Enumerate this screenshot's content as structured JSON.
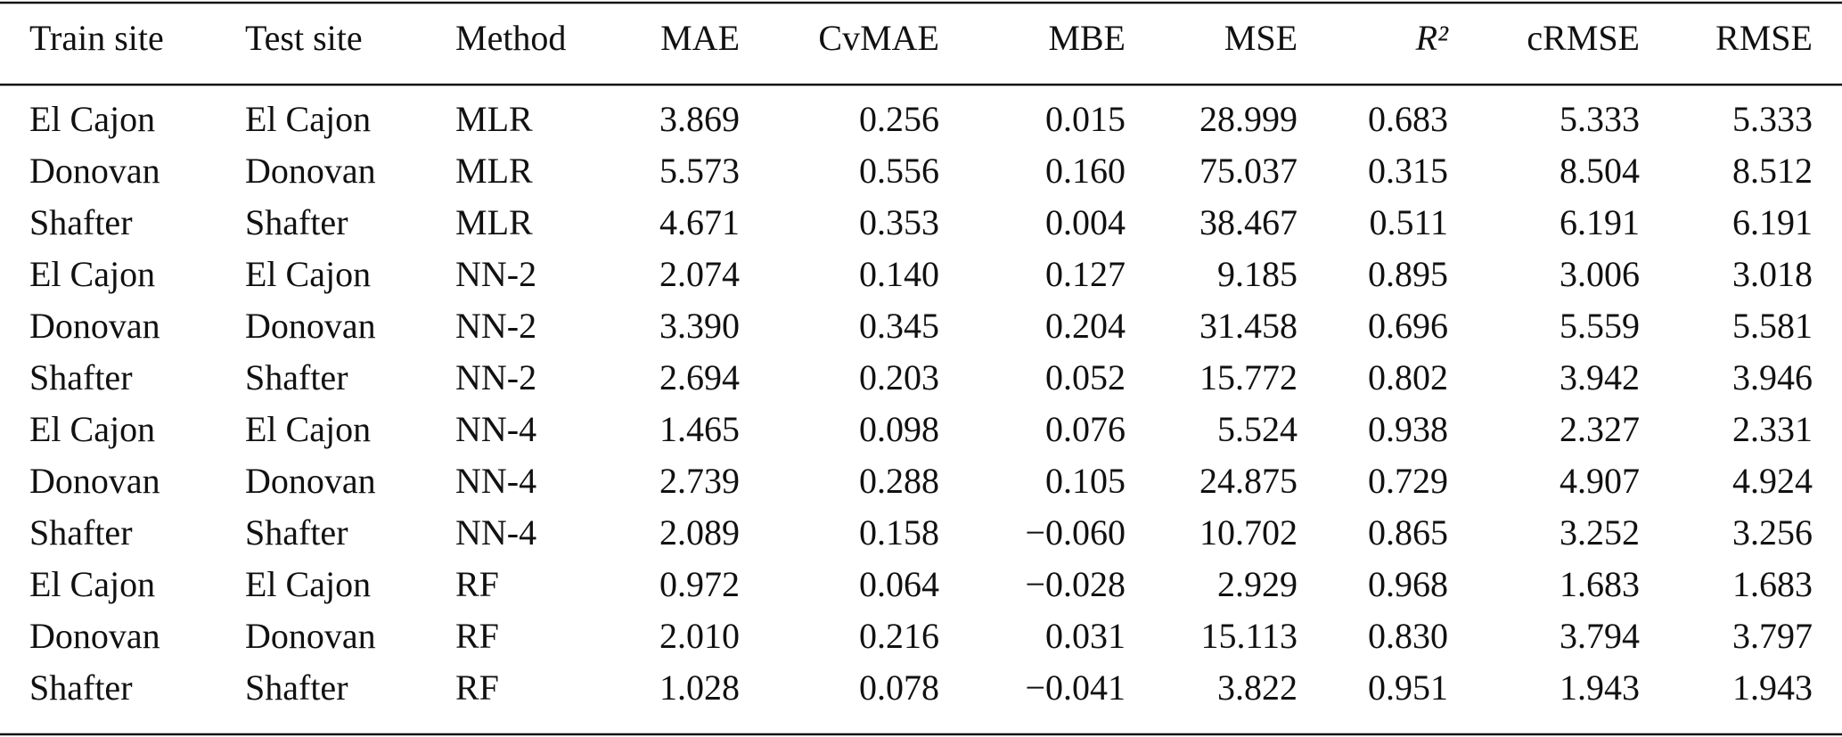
{
  "table": {
    "header": [
      "Train site",
      "Test site",
      "Method",
      "MAE",
      "CvMAE",
      "MBE",
      "MSE",
      "R²",
      "cRMSE",
      "RMSE"
    ],
    "rows": [
      [
        "El Cajon",
        "El Cajon",
        "MLR",
        "3.869",
        "0.256",
        "0.015",
        "28.999",
        "0.683",
        "5.333",
        "5.333"
      ],
      [
        "Donovan",
        "Donovan",
        "MLR",
        "5.573",
        "0.556",
        "0.160",
        "75.037",
        "0.315",
        "8.504",
        "8.512"
      ],
      [
        "Shafter",
        "Shafter",
        "MLR",
        "4.671",
        "0.353",
        "0.004",
        "38.467",
        "0.511",
        "6.191",
        "6.191"
      ],
      [
        "El Cajon",
        "El Cajon",
        "NN-2",
        "2.074",
        "0.140",
        "0.127",
        "9.185",
        "0.895",
        "3.006",
        "3.018"
      ],
      [
        "Donovan",
        "Donovan",
        "NN-2",
        "3.390",
        "0.345",
        "0.204",
        "31.458",
        "0.696",
        "5.559",
        "5.581"
      ],
      [
        "Shafter",
        "Shafter",
        "NN-2",
        "2.694",
        "0.203",
        "0.052",
        "15.772",
        "0.802",
        "3.942",
        "3.946"
      ],
      [
        "El Cajon",
        "El Cajon",
        "NN-4",
        "1.465",
        "0.098",
        "0.076",
        "5.524",
        "0.938",
        "2.327",
        "2.331"
      ],
      [
        "Donovan",
        "Donovan",
        "NN-4",
        "2.739",
        "0.288",
        "0.105",
        "24.875",
        "0.729",
        "4.907",
        "4.924"
      ],
      [
        "Shafter",
        "Shafter",
        "NN-4",
        "2.089",
        "0.158",
        "−0.060",
        "10.702",
        "0.865",
        "3.252",
        "3.256"
      ],
      [
        "El Cajon",
        "El Cajon",
        "RF",
        "0.972",
        "0.064",
        "−0.028",
        "2.929",
        "0.968",
        "1.683",
        "1.683"
      ],
      [
        "Donovan",
        "Donovan",
        "RF",
        "2.010",
        "0.216",
        "0.031",
        "15.113",
        "0.830",
        "3.794",
        "3.797"
      ],
      [
        "Shafter",
        "Shafter",
        "RF",
        "1.028",
        "0.078",
        "−0.041",
        "3.822",
        "0.951",
        "1.943",
        "1.943"
      ]
    ]
  }
}
